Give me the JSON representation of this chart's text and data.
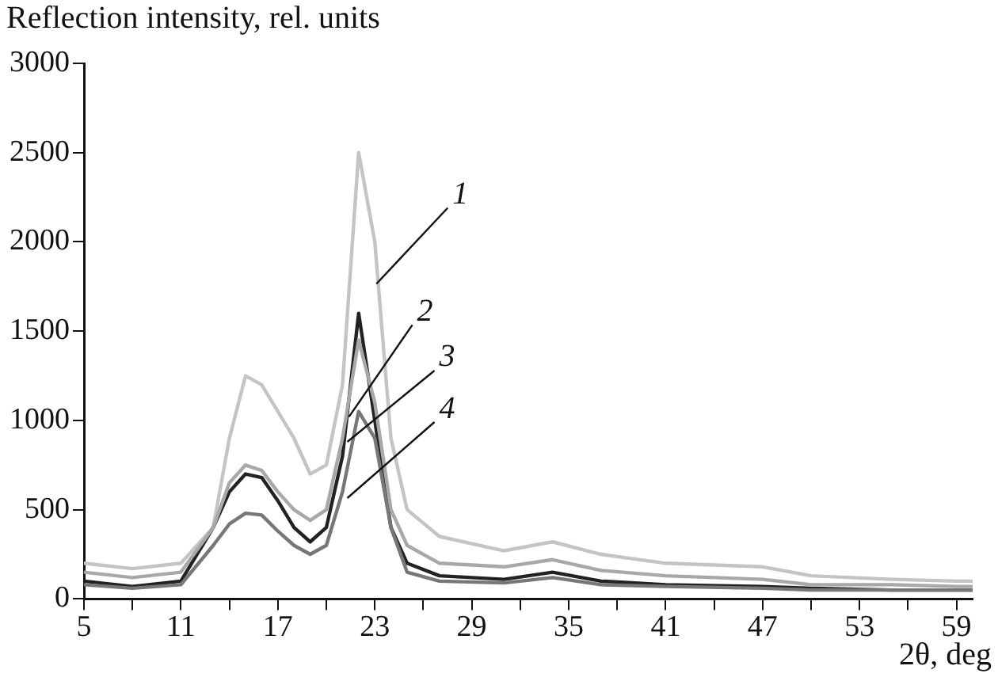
{
  "chart_data": {
    "type": "line",
    "ylabel": "Reflection intensity, rel. units",
    "xlabel": "2θ, deg",
    "xlim": [
      5,
      60
    ],
    "xticks": [
      5,
      {
        "value": 8,
        "label": null
      },
      11,
      {
        "value": 14,
        "label": null
      },
      17,
      {
        "value": 20,
        "label": null
      },
      23,
      {
        "value": 26,
        "label": null
      },
      29,
      {
        "value": 32,
        "label": null
      },
      35,
      {
        "value": 38,
        "label": null
      },
      41,
      {
        "value": 44,
        "label": null
      },
      47,
      {
        "value": 50,
        "label": null
      },
      53,
      {
        "value": 56,
        "label": null
      },
      59
    ],
    "ylim": [
      0,
      3000
    ],
    "yticks": [
      0,
      500,
      1000,
      1500,
      2000,
      2500,
      3000
    ],
    "grid": false,
    "legend": false,
    "marker": "none",
    "line_style": "solid",
    "series": [
      {
        "color": "#c4c4c4",
        "x": [
          5,
          8,
          11,
          13,
          14,
          15,
          16,
          17,
          18,
          19,
          20,
          21,
          22,
          23,
          24,
          25,
          27,
          31,
          34,
          37,
          41,
          47,
          50,
          55,
          59,
          60
        ],
        "values": [
          200,
          170,
          200,
          400,
          900,
          1250,
          1200,
          1050,
          900,
          700,
          750,
          1200,
          2500,
          2000,
          900,
          500,
          350,
          270,
          320,
          250,
          200,
          180,
          130,
          110,
          100,
          100
        ]
      },
      {
        "color": "#222222",
        "x": [
          5,
          8,
          11,
          13,
          14,
          15,
          16,
          17,
          18,
          19,
          20,
          21,
          22,
          23,
          24,
          25,
          27,
          31,
          34,
          37,
          41,
          47,
          50,
          55,
          59,
          60
        ],
        "values": [
          100,
          70,
          100,
          400,
          600,
          700,
          680,
          550,
          400,
          320,
          400,
          800,
          1600,
          1000,
          400,
          200,
          130,
          110,
          150,
          100,
          80,
          70,
          60,
          50,
          50,
          50
        ]
      },
      {
        "color": "#a8a8a8",
        "x": [
          5,
          8,
          11,
          13,
          14,
          15,
          16,
          17,
          18,
          19,
          20,
          21,
          22,
          23,
          24,
          25,
          27,
          31,
          34,
          37,
          41,
          47,
          50,
          55,
          59,
          60
        ],
        "values": [
          150,
          120,
          150,
          400,
          650,
          750,
          720,
          600,
          500,
          440,
          500,
          900,
          1450,
          1100,
          500,
          300,
          200,
          180,
          220,
          160,
          130,
          110,
          80,
          80,
          70,
          70
        ]
      },
      {
        "color": "#777777",
        "x": [
          5,
          8,
          11,
          13,
          14,
          15,
          16,
          17,
          18,
          19,
          20,
          21,
          22,
          23,
          24,
          25,
          27,
          31,
          34,
          37,
          41,
          47,
          50,
          55,
          59,
          60
        ],
        "values": [
          80,
          60,
          80,
          300,
          420,
          480,
          470,
          380,
          300,
          250,
          300,
          600,
          1050,
          900,
          400,
          150,
          100,
          90,
          120,
          80,
          70,
          60,
          50,
          50,
          50,
          50
        ]
      }
    ],
    "annotations": [
      {
        "text": "1",
        "x": 23.1,
        "y": 1765
      },
      {
        "text": "2",
        "x": 21.4,
        "y": 1020
      },
      {
        "text": "3",
        "x": 21.3,
        "y": 880
      },
      {
        "text": "4",
        "x": 21.3,
        "y": 565
      }
    ]
  }
}
